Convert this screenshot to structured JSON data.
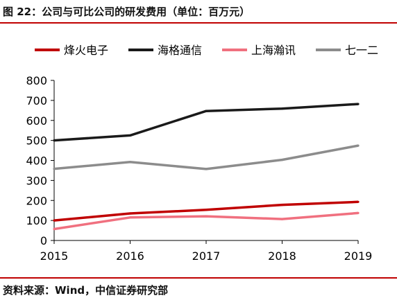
{
  "header": {
    "title": "图 22：公司与可比公司的研发费用（单位：百万元）"
  },
  "footer": {
    "source": "资料来源：Wind，中信证券研究部"
  },
  "chart_data": {
    "type": "line",
    "title": "图 22：公司与可比公司的研发费用（单位：百万元）",
    "xlabel": "",
    "ylabel": "",
    "x": [
      "2015",
      "2016",
      "2017",
      "2018",
      "2019"
    ],
    "ylim": [
      0,
      800
    ],
    "yticks": [
      "0",
      "100",
      "200",
      "300",
      "400",
      "500",
      "600",
      "700",
      "800"
    ],
    "grid": false,
    "legend_position": "top",
    "series": [
      {
        "name": "烽火电子",
        "color": "#c00000",
        "values": [
          100,
          135,
          153,
          178,
          193
        ]
      },
      {
        "name": "海格通信",
        "color": "#1a1a1a",
        "values": [
          500,
          525,
          647,
          659,
          682
        ]
      },
      {
        "name": "上海瀚讯",
        "color": "#f0707f",
        "values": [
          57,
          115,
          121,
          107,
          137
        ]
      },
      {
        "name": "七一二",
        "color": "#8c8c8c",
        "values": [
          358,
          392,
          357,
          403,
          474
        ]
      }
    ]
  }
}
